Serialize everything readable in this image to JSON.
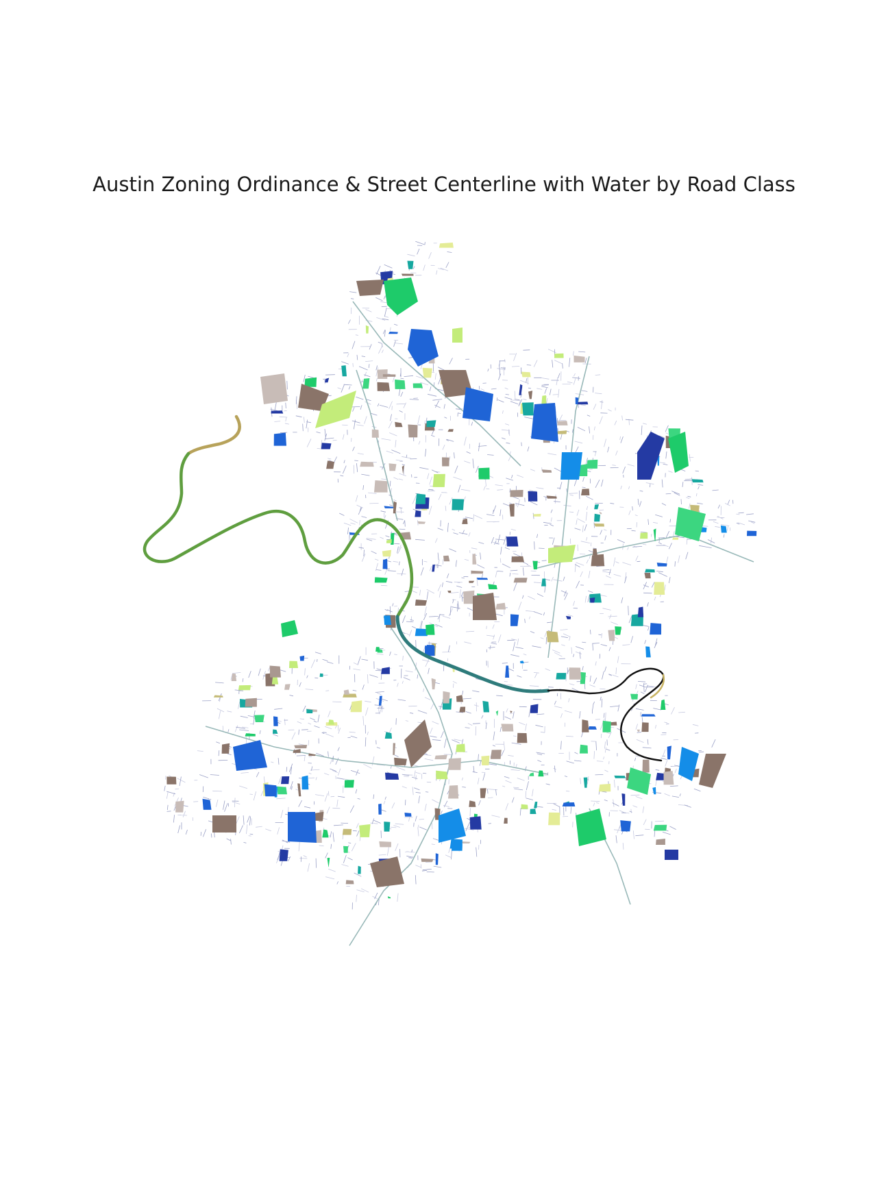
{
  "title": "Austin Zoning Ordinance & Street Centerline with Water by Road Class",
  "map": {
    "colors": {
      "street": "#9aa0c6",
      "street_minor": "#c6c9e0",
      "highway": "#98b8b8",
      "river_upper": "#5f9e3f",
      "river_upper_tan": "#b7a25a",
      "river_lake": "#2e7b7b",
      "river_lower": "#111111",
      "river_lower_tan": "#c9b463",
      "zone_brown": "#8a7469",
      "zone_mauve": "#a99890",
      "zone_taupe": "#c8bcb7",
      "zone_khaki": "#c5bb78",
      "zone_lightyellow": "#e4ec96",
      "zone_lime": "#c3ec7a",
      "zone_green": "#3cd680",
      "zone_brightgreen": "#1ecb6a",
      "zone_teal": "#17a8a0",
      "zone_blue": "#1f64d6",
      "zone_azure": "#148de8",
      "zone_navy": "#243aa3"
    }
  }
}
